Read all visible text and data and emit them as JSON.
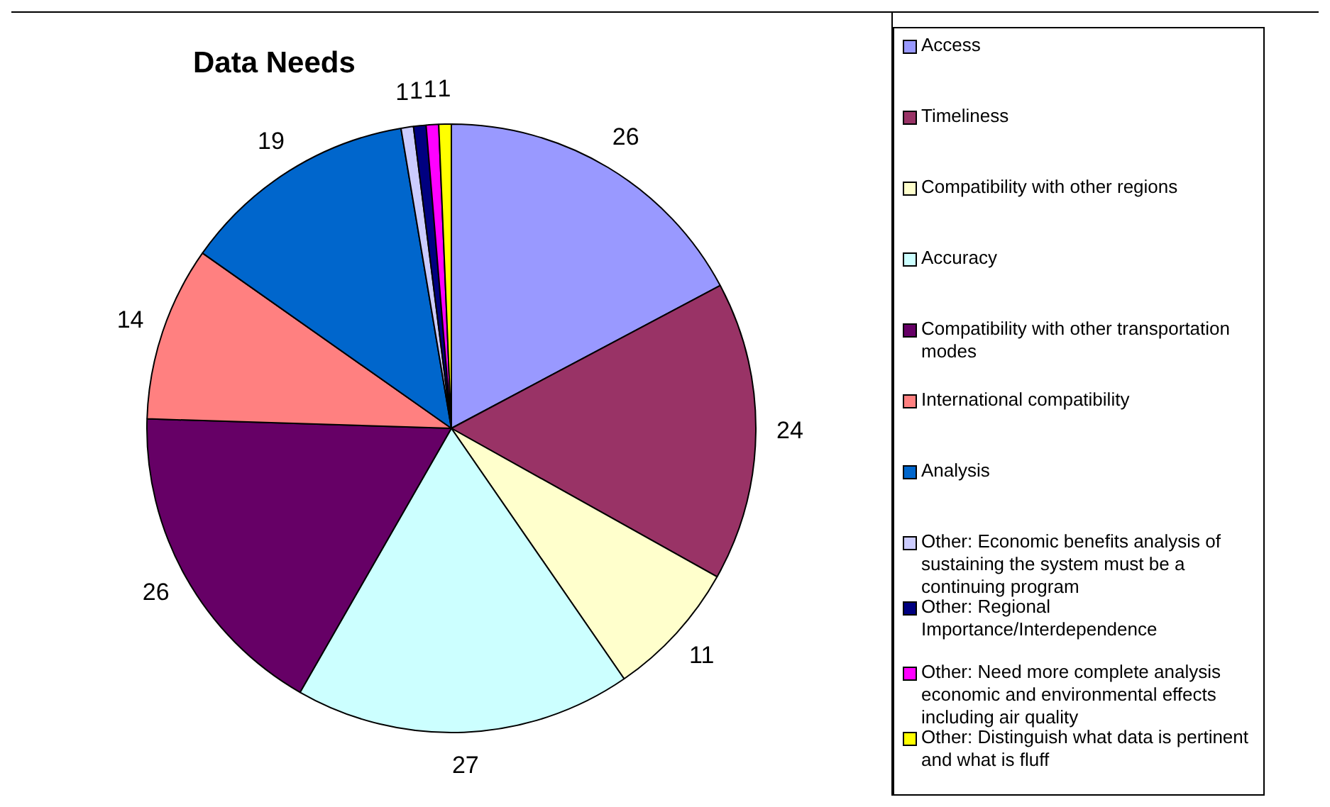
{
  "chart_data": {
    "type": "pie",
    "title": "Data Needs",
    "categories": [
      "Access",
      "Timeliness",
      "Compatibility with other regions",
      "Accuracy",
      "Compatibility with other transportation modes",
      "International compatibility",
      "Analysis",
      "Other: Economic benefits analysis of sustaining the system must be a continuing program",
      "Other: Regional Importance/Interdependence",
      "Other: Need more complete analysis economic and environmental effects including air quality",
      "Other: Distinguish what data is pertinent and what is fluff"
    ],
    "values": [
      26,
      24,
      11,
      27,
      26,
      14,
      19,
      1,
      1,
      1,
      1
    ],
    "colors": [
      "#9999ff",
      "#993366",
      "#ffffcc",
      "#ccffff",
      "#660066",
      "#ff8080",
      "#0066cc",
      "#ccccff",
      "#000080",
      "#ff00ff",
      "#ffff00"
    ],
    "data_labels": true,
    "legend": "right"
  }
}
